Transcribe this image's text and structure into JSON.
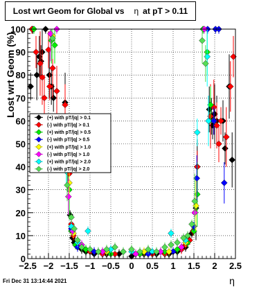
{
  "footer": "Fri Dec 31 13:14:44 2021",
  "chart_data": {
    "type": "scatter",
    "title_parts": [
      "Lost wrt Geom for Global vs",
      "η",
      "at pT > 0.11"
    ],
    "xlabel": "η",
    "ylabel": "Lost wrt Geom (%)",
    "xlim": [
      -2.5,
      2.5
    ],
    "ylim": [
      0,
      100
    ],
    "xticks": [
      -2.5,
      -2,
      -1.5,
      -1,
      -0.5,
      0,
      0.5,
      1,
      1.5,
      2,
      2.5
    ],
    "xtick_labels": [
      "−2.5",
      "−2",
      "−1.5",
      "−1",
      "−0.5",
      "0",
      "0.5",
      "1",
      "1.5",
      "2",
      "2.5"
    ],
    "yticks": [
      0,
      10,
      20,
      30,
      40,
      50,
      60,
      70,
      80,
      90,
      100
    ],
    "ytick_labels": [
      "0",
      "10",
      "20",
      "30",
      "40",
      "50",
      "60",
      "70",
      "80",
      "90",
      "100"
    ],
    "grid": true,
    "legend_position": "left-middle",
    "series": [
      {
        "name": "(+) with pT/|q| > 0.1",
        "color": "#000000",
        "points": [
          [
            -2.43,
            75
          ],
          [
            -2.38,
            100
          ],
          [
            -2.28,
            80
          ],
          [
            -2.22,
            88
          ],
          [
            -2.18,
            86
          ],
          [
            -2.15,
            90
          ],
          [
            -2.07,
            100
          ],
          [
            -1.98,
            80
          ],
          [
            -1.93,
            75
          ],
          [
            -1.88,
            70
          ],
          [
            -1.6,
            68
          ],
          [
            -1.58,
            50
          ],
          [
            -1.53,
            38
          ],
          [
            -1.48,
            19
          ],
          [
            -1.42,
            9
          ],
          [
            -1.38,
            7
          ],
          [
            -1.3,
            5
          ],
          [
            -1.2,
            4
          ],
          [
            -1.1,
            3
          ],
          [
            -0.9,
            2
          ],
          [
            -0.6,
            2
          ],
          [
            -0.3,
            2
          ],
          [
            0.0,
            1
          ],
          [
            0.3,
            2
          ],
          [
            0.6,
            2
          ],
          [
            0.9,
            2
          ],
          [
            1.1,
            3
          ],
          [
            1.2,
            4
          ],
          [
            1.3,
            5
          ],
          [
            1.38,
            8
          ],
          [
            1.45,
            11
          ],
          [
            1.5,
            14
          ],
          [
            1.55,
            22
          ],
          [
            1.58,
            40
          ],
          [
            1.87,
            65
          ],
          [
            1.92,
            62
          ],
          [
            1.95,
            58
          ],
          [
            2.0,
            63
          ],
          [
            2.05,
            60
          ],
          [
            2.2,
            60
          ],
          [
            2.25,
            48
          ],
          [
            2.35,
            75
          ],
          [
            2.42,
            43
          ]
        ]
      },
      {
        "name": "(-) with pT/|q| > 0.1",
        "color": "#ff0000",
        "points": [
          [
            -2.4,
            100
          ],
          [
            -2.3,
            90
          ],
          [
            -2.2,
            85
          ],
          [
            -2.15,
            79
          ],
          [
            -2.1,
            70
          ],
          [
            -2.0,
            91
          ],
          [
            -1.97,
            75
          ],
          [
            -1.9,
            83
          ],
          [
            -1.8,
            73
          ],
          [
            -1.6,
            67
          ],
          [
            -1.55,
            48
          ],
          [
            -1.5,
            37
          ],
          [
            -1.45,
            15
          ],
          [
            -1.4,
            10
          ],
          [
            -1.35,
            6
          ],
          [
            -1.2,
            5
          ],
          [
            -1.0,
            3
          ],
          [
            -0.7,
            2
          ],
          [
            -0.4,
            2
          ],
          [
            0.2,
            2
          ],
          [
            0.5,
            2
          ],
          [
            0.8,
            2
          ],
          [
            1.0,
            3
          ],
          [
            1.2,
            4
          ],
          [
            1.3,
            6
          ],
          [
            1.4,
            8
          ],
          [
            1.48,
            12
          ],
          [
            1.52,
            20
          ],
          [
            1.58,
            40
          ],
          [
            1.9,
            62
          ],
          [
            1.98,
            66
          ],
          [
            2.05,
            58
          ],
          [
            2.1,
            50
          ],
          [
            2.15,
            60
          ],
          [
            2.28,
            53
          ],
          [
            2.38,
            75
          ],
          [
            2.45,
            88
          ]
        ]
      },
      {
        "name": "(+) with pT/|q| > 0.5",
        "color": "#00ee00",
        "points": [
          [
            -2.35,
            100
          ],
          [
            -1.93,
            95
          ],
          [
            -1.85,
            93
          ],
          [
            -1.55,
            45
          ],
          [
            -1.5,
            30
          ],
          [
            -1.45,
            12
          ],
          [
            -1.35,
            6
          ],
          [
            -1.1,
            4
          ],
          [
            -0.8,
            3
          ],
          [
            -0.5,
            2
          ],
          [
            -0.2,
            3
          ],
          [
            0.2,
            2
          ],
          [
            0.5,
            3
          ],
          [
            0.8,
            3
          ],
          [
            1.1,
            4
          ],
          [
            1.35,
            7
          ],
          [
            1.5,
            12
          ],
          [
            1.58,
            28
          ],
          [
            1.72,
            100
          ],
          [
            1.82,
            90
          ],
          [
            1.9,
            67
          ]
        ]
      },
      {
        "name": "(-) with pT/|q| > 0.5",
        "color": "#0000ff",
        "points": [
          [
            -1.52,
            48
          ],
          [
            -1.45,
            13
          ],
          [
            -1.3,
            5
          ],
          [
            -0.9,
            3
          ],
          [
            0.4,
            2
          ],
          [
            1.0,
            3
          ],
          [
            1.5,
            14
          ],
          [
            1.57,
            35
          ],
          [
            1.83,
            100
          ],
          [
            1.98,
            60
          ],
          [
            2.02,
            100
          ],
          [
            2.1,
            100
          ],
          [
            2.23,
            33
          ]
        ]
      },
      {
        "name": "(+) with pT/|q| > 1.0",
        "color": "#ffff00",
        "points": [
          [
            -1.9,
            97
          ],
          [
            -1.5,
            33
          ],
          [
            -1.4,
            11
          ],
          [
            -1.2,
            5
          ],
          [
            -0.6,
            3
          ],
          [
            0.3,
            3
          ],
          [
            0.9,
            3
          ],
          [
            1.3,
            7
          ],
          [
            1.55,
            23
          ]
        ]
      },
      {
        "name": "(-) with pT/|q| > 1.0",
        "color": "#ff00ff",
        "points": [
          [
            -1.95,
            98
          ],
          [
            -1.8,
            100
          ],
          [
            -1.52,
            27
          ],
          [
            -1.42,
            12
          ],
          [
            -1.2,
            6
          ],
          [
            -0.7,
            3
          ],
          [
            0.1,
            2
          ],
          [
            0.7,
            3
          ],
          [
            1.2,
            5
          ],
          [
            1.52,
            20
          ],
          [
            1.75,
            100
          ]
        ]
      },
      {
        "name": "(+) with pT/|q| > 2.0",
        "color": "#00ffff",
        "points": [
          [
            -1.57,
            38
          ],
          [
            -1.45,
            14
          ],
          [
            -1.3,
            7
          ],
          [
            -1.05,
            12
          ],
          [
            -0.5,
            4
          ],
          [
            0.0,
            3
          ],
          [
            0.5,
            3
          ],
          [
            0.95,
            11
          ],
          [
            1.3,
            8
          ],
          [
            1.58,
            55
          ],
          [
            1.82,
            88
          ],
          [
            1.85,
            60
          ]
        ]
      },
      {
        "name": "(-) with pT/|q| > 2.0",
        "color": "#55dd55",
        "points": [
          [
            -1.9,
            96
          ],
          [
            -1.55,
            32
          ],
          [
            -1.45,
            18
          ],
          [
            -1.38,
            13
          ],
          [
            -1.3,
            8
          ],
          [
            -1.2,
            5
          ],
          [
            -1.0,
            4
          ],
          [
            -0.8,
            3
          ],
          [
            -0.6,
            4
          ],
          [
            -0.4,
            5
          ],
          [
            -0.2,
            3
          ],
          [
            0.0,
            4
          ],
          [
            0.2,
            3
          ],
          [
            0.4,
            4
          ],
          [
            0.6,
            3
          ],
          [
            0.8,
            5
          ],
          [
            0.95,
            6
          ],
          [
            1.1,
            7
          ],
          [
            1.25,
            9
          ],
          [
            1.35,
            10
          ],
          [
            1.45,
            15
          ],
          [
            1.52,
            25
          ],
          [
            1.7,
            95
          ],
          [
            1.78,
            85
          ]
        ]
      }
    ]
  }
}
